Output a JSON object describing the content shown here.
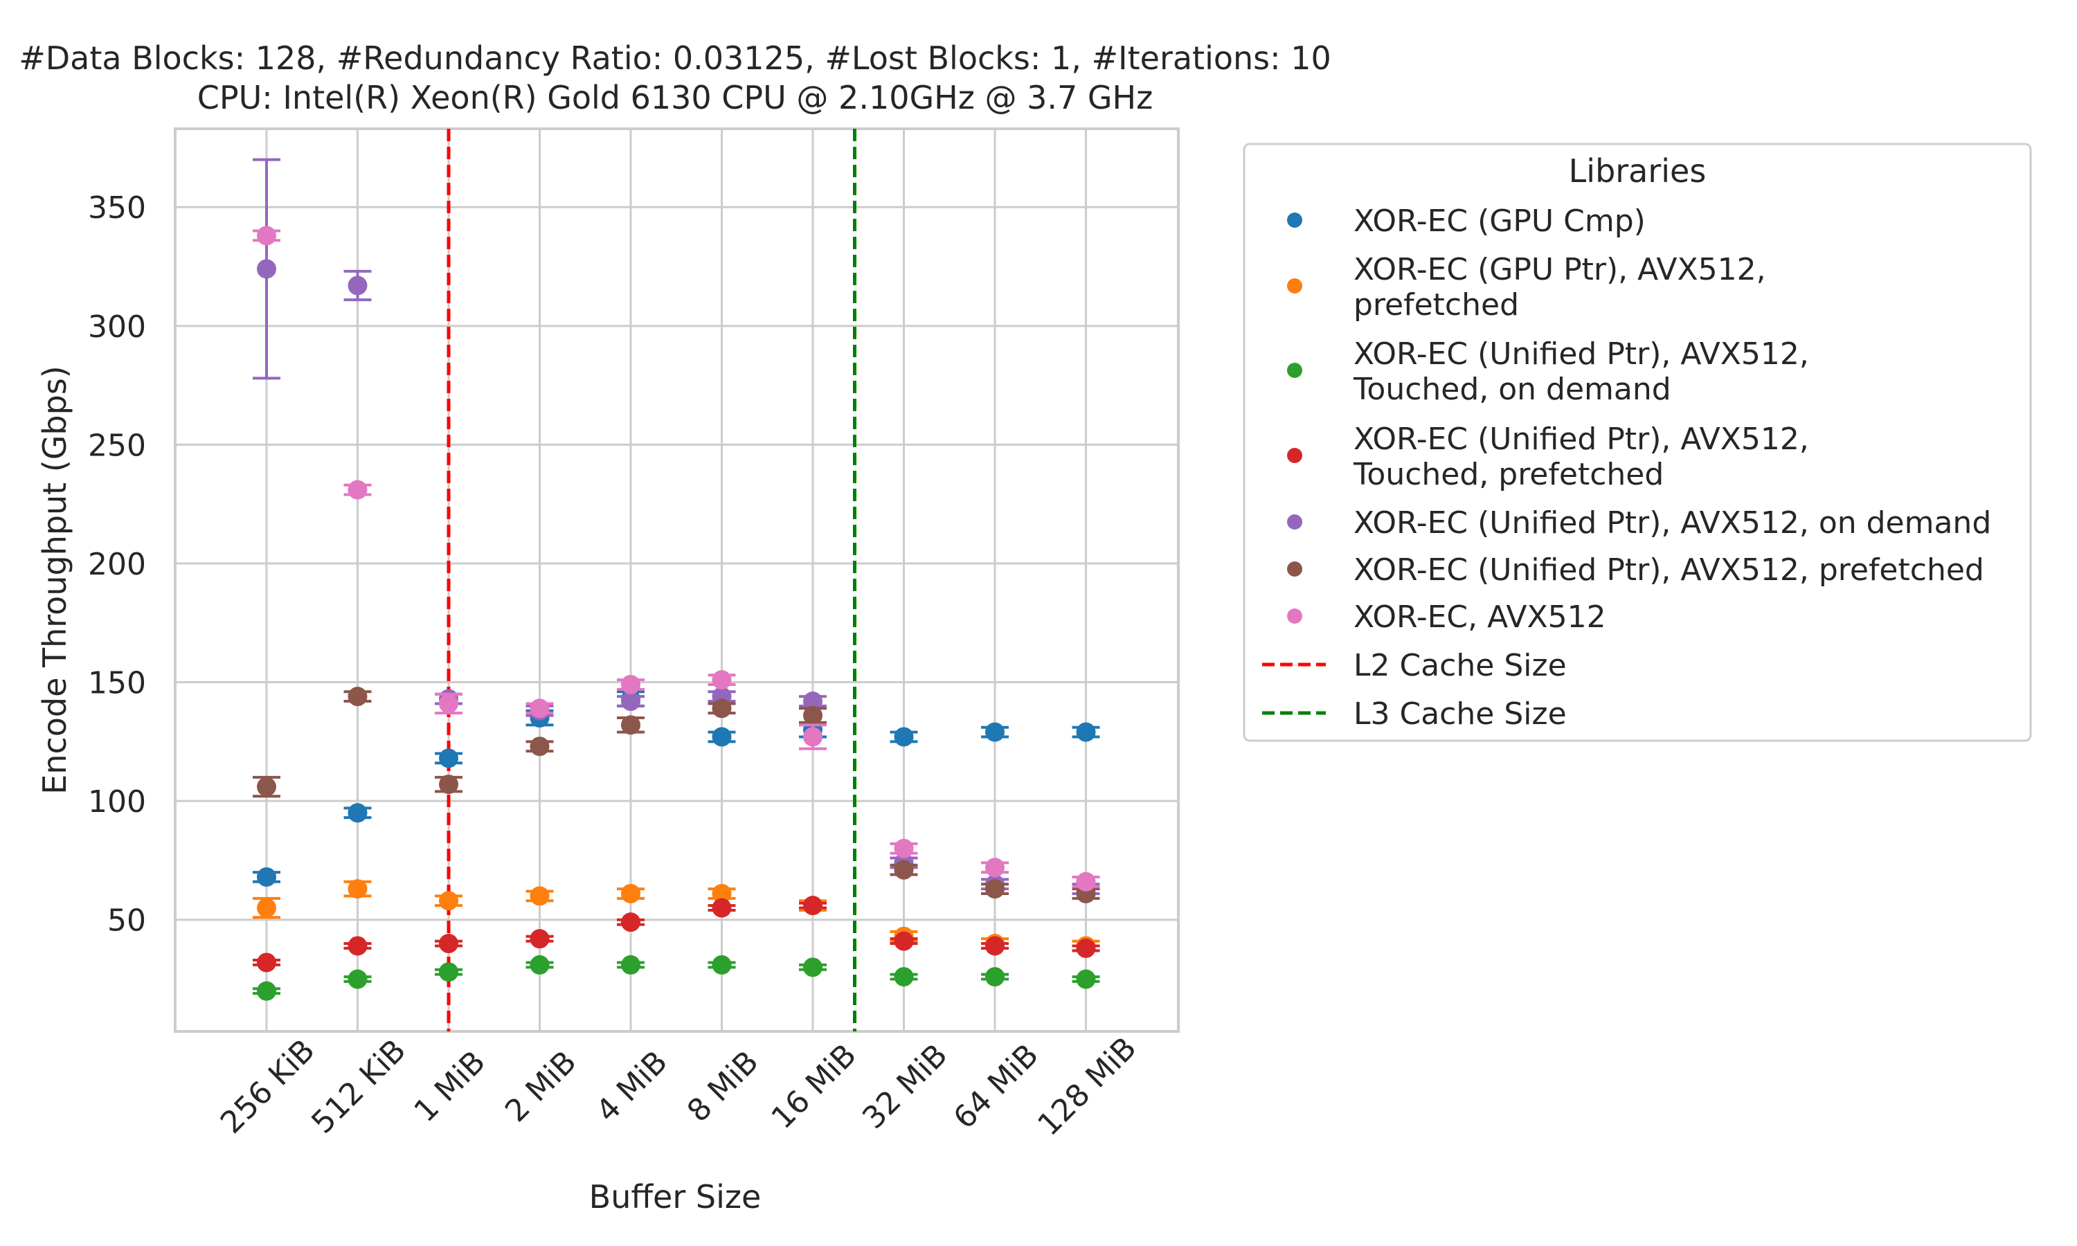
{
  "chart_data": {
    "type": "scatter",
    "title": "#Data Blocks: 128, #Redundancy Ratio: 0.03125, #Lost Blocks: 1, #Iterations: 10",
    "subtitle": "CPU: Intel(R) Xeon(R) Gold 6130 CPU @ 2.10GHz @ 3.7 GHz",
    "xlabel": "Buffer Size",
    "ylabel": "Encode Throughput (Gbps)",
    "categories": [
      "256 KiB",
      "512 KiB",
      "1 MiB",
      "2 MiB",
      "4 MiB",
      "8 MiB",
      "16 MiB",
      "32 MiB",
      "64 MiB",
      "128 MiB"
    ],
    "ylim": [
      3,
      383
    ],
    "yticks": [
      50,
      100,
      150,
      200,
      250,
      300,
      350
    ],
    "grid": true,
    "legend_title": "Libraries",
    "legend_position": "outside-right",
    "series": [
      {
        "name": "XOR-EC (GPU Cmp)",
        "color": "#1f77b4",
        "values": [
          68,
          95,
          118,
          135,
          143,
          127,
          130,
          127,
          129,
          129
        ],
        "err": [
          2,
          2,
          2,
          3,
          3,
          2,
          3,
          2,
          2,
          2
        ]
      },
      {
        "name": "XOR-EC (GPU Ptr), AVX512, prefetched",
        "color": "#ff7f0e",
        "values": [
          55,
          63,
          58,
          60,
          61,
          61,
          56,
          43,
          40,
          39
        ],
        "err": [
          4,
          3,
          2,
          2,
          2,
          2,
          2,
          2,
          2,
          2
        ]
      },
      {
        "name": "XOR-EC (Unified Ptr), AVX512, Touched, on demand",
        "color": "#2ca02c",
        "values": [
          20,
          25,
          28,
          31,
          31,
          31,
          30,
          26,
          26,
          25
        ],
        "err": [
          1,
          1,
          1,
          1,
          1,
          1,
          1,
          1,
          1,
          1
        ]
      },
      {
        "name": "XOR-EC (Unified Ptr), AVX512, Touched, prefetched",
        "color": "#d62728",
        "values": [
          32,
          39,
          40,
          42,
          49,
          55,
          56,
          41,
          39,
          38
        ],
        "err": [
          1,
          1,
          1,
          1,
          1,
          1,
          1,
          1,
          1,
          1
        ]
      },
      {
        "name": "XOR-EC (Unified Ptr), AVX512, on demand",
        "color": "#9467bd",
        "values": [
          324,
          317,
          143,
          138,
          142,
          144,
          142,
          74,
          65,
          63
        ],
        "err": [
          46,
          6,
          2,
          2,
          2,
          2,
          2,
          2,
          2,
          2
        ]
      },
      {
        "name": "XOR-EC (Unified Ptr), AVX512, prefetched",
        "color": "#8c564b",
        "values": [
          106,
          144,
          107,
          123,
          132,
          139,
          136,
          71,
          63,
          61
        ],
        "err": [
          4,
          2,
          3,
          2,
          3,
          2,
          3,
          2,
          2,
          2
        ]
      },
      {
        "name": "XOR-EC, AVX512",
        "color": "#e377c2",
        "values": [
          338,
          231,
          141,
          139,
          149,
          151,
          127,
          80,
          72,
          66
        ],
        "err": [
          2,
          2,
          4,
          2,
          2,
          2,
          5,
          2,
          2,
          2
        ]
      }
    ],
    "reference_lines": [
      {
        "name": "L2 Cache Size",
        "color": "#ff0000",
        "x_index": 2
      },
      {
        "name": "L3 Cache Size",
        "color": "#008000",
        "x_index": 6.46
      }
    ]
  }
}
